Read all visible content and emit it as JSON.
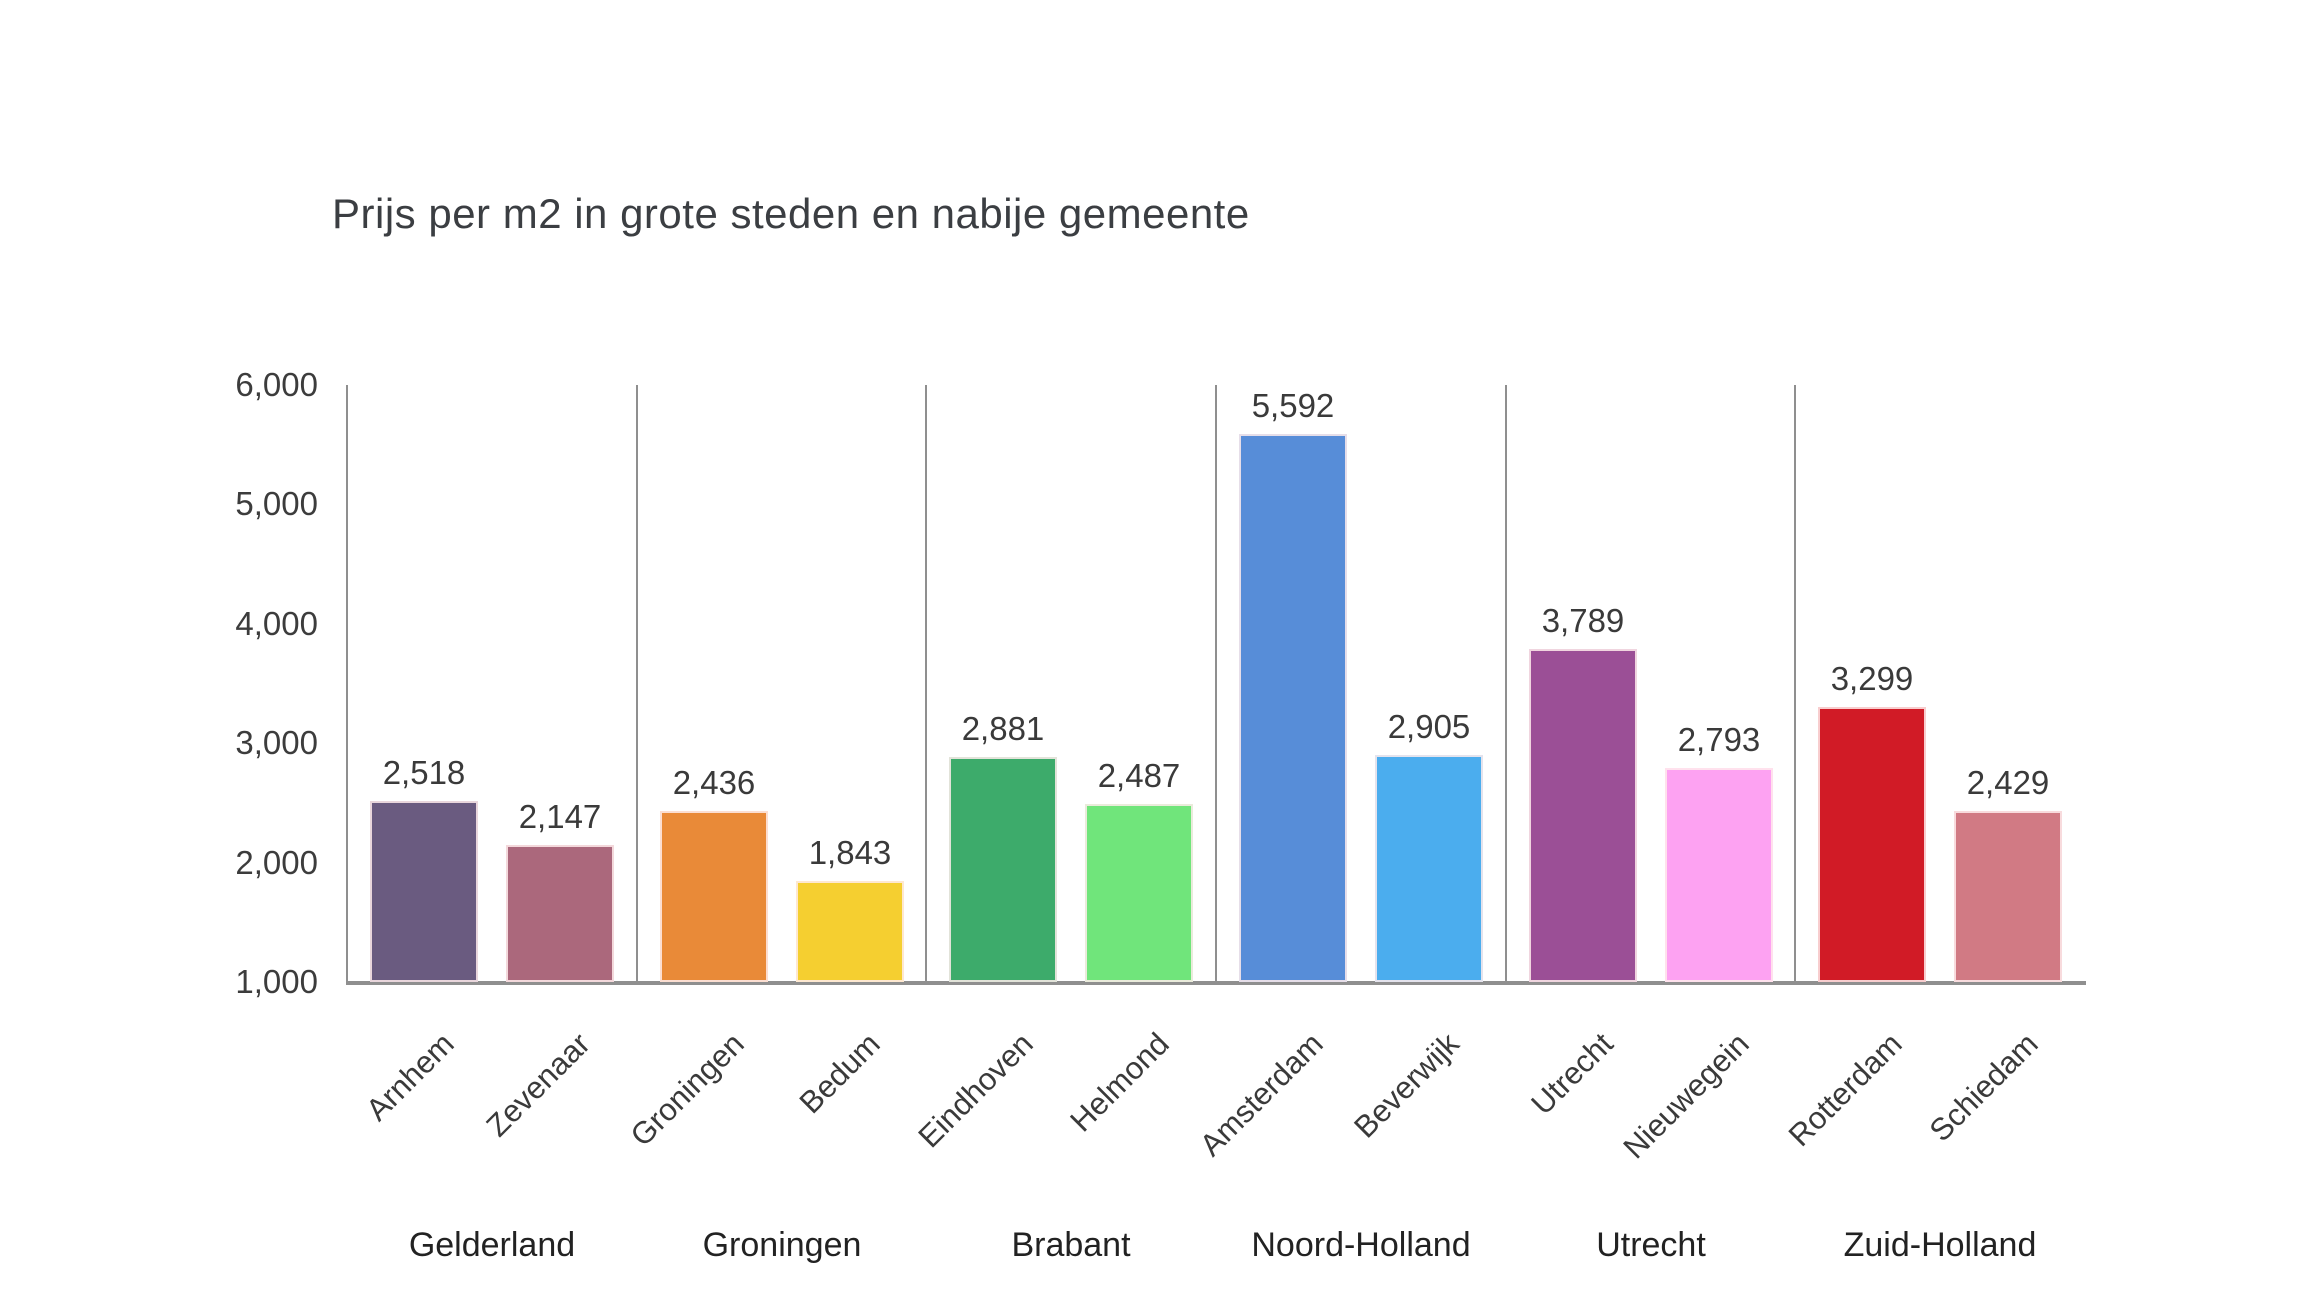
{
  "chart_data": {
    "type": "bar",
    "title": "Prijs per m2 in grote steden en nabije gemeente",
    "xlabel": "",
    "ylabel": "",
    "ylim": [
      1000,
      6000
    ],
    "y_ticks": [
      1000,
      2000,
      3000,
      4000,
      5000,
      6000
    ],
    "y_tick_labels": [
      "1,000",
      "2,000",
      "3,000",
      "4,000",
      "5,000",
      "6,000"
    ],
    "grid": false,
    "legend": "none",
    "bar_group_separators": true,
    "groups": [
      {
        "province": "Gelderland",
        "bars": [
          {
            "city": "Arnhem",
            "value": 2518,
            "label": "2,518",
            "color": "#6a5b80"
          },
          {
            "city": "Zevenaar",
            "value": 2147,
            "label": "2,147",
            "color": "#ab687c"
          }
        ]
      },
      {
        "province": "Groningen",
        "bars": [
          {
            "city": "Groningen",
            "value": 2436,
            "label": "2,436",
            "color": "#e98a38"
          },
          {
            "city": "Bedum",
            "value": 1843,
            "label": "1,843",
            "color": "#f5cf30"
          }
        ]
      },
      {
        "province": "Brabant",
        "bars": [
          {
            "city": "Eindhoven",
            "value": 2881,
            "label": "2,881",
            "color": "#3dab6b"
          },
          {
            "city": "Helmond",
            "value": 2487,
            "label": "2,487",
            "color": "#70e57b"
          }
        ]
      },
      {
        "province": "Noord-Holland",
        "bars": [
          {
            "city": "Amsterdam",
            "value": 5592,
            "label": "5,592",
            "color": "#578dd8"
          },
          {
            "city": "Beverwijk",
            "value": 2905,
            "label": "2,905",
            "color": "#4badee"
          }
        ]
      },
      {
        "province": "Utrecht",
        "bars": [
          {
            "city": "Utrecht",
            "value": 3789,
            "label": "3,789",
            "color": "#9b4f96"
          },
          {
            "city": "Nieuwegein",
            "value": 2793,
            "label": "2,793",
            "color": "#fda2f2"
          }
        ]
      },
      {
        "province": "Zuid-Holland",
        "bars": [
          {
            "city": "Rotterdam",
            "value": 3299,
            "label": "3,299",
            "color": "#d11b26"
          },
          {
            "city": "Schiedam",
            "value": 2429,
            "label": "2,429",
            "color": "#d17a84"
          }
        ]
      }
    ],
    "colors": {
      "axis_line": "#8f8f8f",
      "separator_line": "#8f8f8f",
      "tick_text": "#3c3c3c",
      "value_text": "#3a3a3a",
      "title_text": "#3b3e42",
      "province_text": "#222222",
      "background": "#ffffff"
    }
  }
}
